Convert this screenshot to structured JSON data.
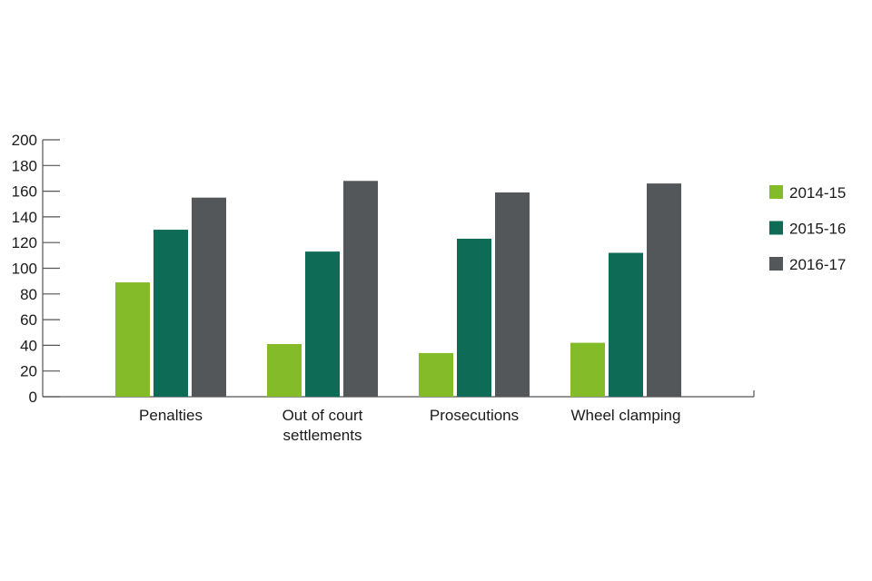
{
  "chart_data": {
    "type": "bar",
    "categories": [
      [
        "Penalties"
      ],
      [
        "Out of court",
        "settlements"
      ],
      [
        "Prosecutions"
      ],
      [
        "Wheel clamping"
      ]
    ],
    "series": [
      {
        "name": "2014-15",
        "color": "#84bb29",
        "values": [
          89,
          41,
          34,
          42
        ]
      },
      {
        "name": "2015-16",
        "color": "#0e6b55",
        "values": [
          130,
          113,
          123,
          112
        ]
      },
      {
        "name": "2016-17",
        "color": "#53575a",
        "values": [
          155,
          168,
          159,
          166
        ]
      }
    ],
    "yticks": [
      "0",
      "20",
      "40",
      "60",
      "80",
      "100",
      "120",
      "140",
      "160",
      "180",
      "200"
    ],
    "ylim": [
      0,
      200
    ],
    "grid": false,
    "legend_position": "right"
  }
}
